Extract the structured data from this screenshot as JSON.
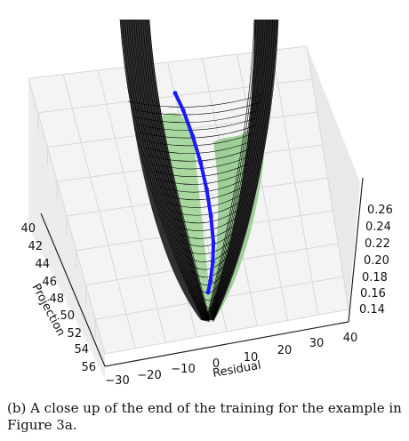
{
  "chart_data": {
    "type": "surface3d",
    "title": "",
    "xlabel": "Residual",
    "ylabel": "Projection",
    "zlabel": "",
    "x_ticks": [
      "−30",
      "−20",
      "−10",
      "0",
      "10",
      "20",
      "30",
      "40"
    ],
    "y_ticks": [
      "40",
      "42",
      "44",
      "46",
      "48",
      "50",
      "52",
      "54",
      "56"
    ],
    "z_ticks": [
      "0.26",
      "0.24",
      "0.22",
      "0.20",
      "0.18",
      "0.16",
      "0.14"
    ],
    "xlim": [
      -30,
      40
    ],
    "ylim": [
      40,
      56
    ],
    "zlim": [
      0.13,
      0.27
    ],
    "grid": true,
    "colors": {
      "surface": "#a8d8a0",
      "mesh": "#000000",
      "trajectory": "#1a1aff"
    },
    "trajectory": [
      {
        "x": 0.5,
        "y": 52.5,
        "z": 0.135
      },
      {
        "x": 2,
        "y": 51.5,
        "z": 0.14
      },
      {
        "x": 3.5,
        "y": 50.5,
        "z": 0.15
      },
      {
        "x": 4.5,
        "y": 49.5,
        "z": 0.16
      },
      {
        "x": 5,
        "y": 48,
        "z": 0.175
      },
      {
        "x": 5,
        "y": 46.5,
        "z": 0.19
      },
      {
        "x": 4.5,
        "y": 45,
        "z": 0.205
      },
      {
        "x": 3.5,
        "y": 43.5,
        "z": 0.22
      },
      {
        "x": 2,
        "y": 42,
        "z": 0.235
      },
      {
        "x": 0.5,
        "y": 41,
        "z": 0.245
      }
    ]
  },
  "caption": "(b) A close up of the end of the training for the example in Figure 3a."
}
